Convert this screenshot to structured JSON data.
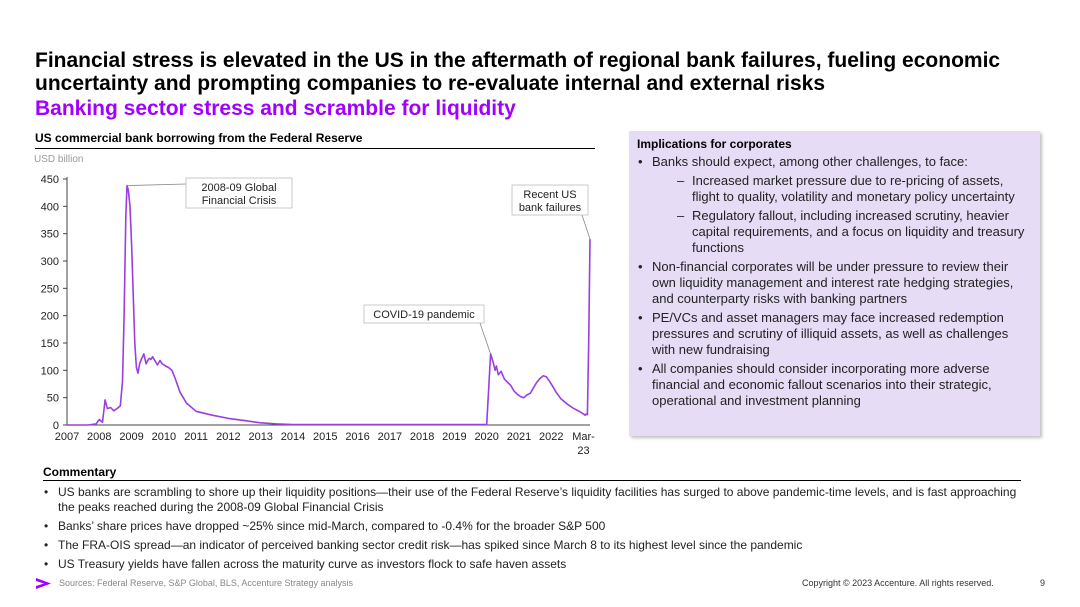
{
  "slide": {
    "title": "Financial stress is elevated in the US in the aftermath of regional bank failures, fueling economic uncertainty and prompting companies to re-evaluate internal and external risks",
    "subtitle": "Banking sector stress and scramble for liquidity",
    "accent_color": "#a100ff"
  },
  "chart_data": {
    "type": "line",
    "title": "US commercial bank borrowing from the Federal Reserve",
    "ylabel": "USD billion",
    "ylim": [
      0,
      450
    ],
    "yticks": [
      0,
      50,
      100,
      150,
      200,
      250,
      300,
      350,
      400,
      450
    ],
    "xlim": [
      2007.0,
      2023.2
    ],
    "xtick_labels": [
      "2007",
      "2008",
      "2009",
      "2010",
      "2011",
      "2012",
      "2013",
      "2014",
      "2015",
      "2016",
      "2017",
      "2018",
      "2019",
      "2020",
      "2021",
      "2022",
      "Mar-23"
    ],
    "line_color": "#9a3ee0",
    "series": [
      {
        "x": [
          2007.0,
          2007.65,
          2007.9,
          2008.0,
          2008.1,
          2008.18,
          2008.25,
          2008.35,
          2008.45,
          2008.55,
          2008.65,
          2008.72,
          2008.77,
          2008.82,
          2008.86,
          2008.9,
          2008.95,
          2009.0,
          2009.05,
          2009.1,
          2009.15,
          2009.2,
          2009.25,
          2009.3,
          2009.38,
          2009.45,
          2009.5,
          2009.55,
          2009.6,
          2009.65,
          2009.72,
          2009.8,
          2009.88,
          2009.95,
          2010.05,
          2010.15,
          2010.25,
          2010.35,
          2010.5,
          2010.7,
          2011.0,
          2011.5,
          2012.0,
          2012.5,
          2013.0,
          2013.5,
          2014.0,
          2016.0,
          2018.0,
          2019.0,
          2020.0,
          2020.12,
          2020.2,
          2020.26,
          2020.3,
          2020.36,
          2020.45,
          2020.55,
          2020.65,
          2020.75,
          2020.85,
          2020.95,
          2021.05,
          2021.15,
          2021.25,
          2021.35,
          2021.45,
          2021.55,
          2021.65,
          2021.75,
          2021.85,
          2021.95,
          2022.05,
          2022.15,
          2022.3,
          2022.5,
          2022.7,
          2022.9,
          2023.0,
          2023.05,
          2023.08,
          2023.12,
          2023.16,
          2023.2
        ],
        "y": [
          0,
          0,
          2,
          10,
          5,
          46,
          30,
          32,
          26,
          30,
          35,
          80,
          200,
          380,
          438,
          430,
          400,
          330,
          240,
          150,
          105,
          95,
          112,
          120,
          130,
          112,
          118,
          122,
          120,
          125,
          118,
          110,
          118,
          112,
          108,
          105,
          100,
          85,
          60,
          40,
          25,
          18,
          12,
          8,
          4,
          2,
          1,
          1,
          1,
          1,
          1,
          130,
          115,
          100,
          108,
          92,
          98,
          84,
          78,
          72,
          62,
          56,
          52,
          50,
          55,
          58,
          68,
          78,
          85,
          90,
          88,
          80,
          70,
          60,
          48,
          38,
          30,
          24,
          20,
          18,
          20,
          19,
          150,
          340
        ]
      }
    ],
    "annotations": [
      {
        "lines": [
          "2008-09 Global",
          "Financial Crisis"
        ],
        "x": 2008.9,
        "y": 438
      },
      {
        "lines": [
          "COVID-19 pandemic"
        ],
        "x": 2020.12,
        "y": 130
      },
      {
        "lines": [
          "Recent US",
          "bank failures"
        ],
        "x": 2023.2,
        "y": 340
      }
    ]
  },
  "implications": {
    "title": "Implications for corporates",
    "items": [
      {
        "level": 1,
        "text": "Banks should expect, among other challenges, to face:"
      },
      {
        "level": 2,
        "text": "Increased market pressure due to re-pricing of assets, flight to quality, volatility and monetary policy uncertainty"
      },
      {
        "level": 2,
        "text": "Regulatory fallout, including increased scrutiny, heavier capital requirements, and a focus on liquidity and treasury functions"
      },
      {
        "level": 1,
        "text": "Non-financial corporates will be under pressure to review their own liquidity management and interest rate hedging strategies, and counterparty risks with banking partners"
      },
      {
        "level": 1,
        "text": "PE/VCs and asset managers may face increased redemption pressures and scrutiny of illiquid assets, as well as challenges with new fundraising"
      },
      {
        "level": 1,
        "text": "All companies should consider incorporating more adverse financial and economic fallout scenarios into their strategic, operational and investment planning"
      }
    ]
  },
  "commentary": {
    "title": "Commentary",
    "items": [
      "US banks are scrambling to shore up their liquidity positions—their use of the Federal Reserve’s liquidity facilities has surged to above pandemic-time levels, and is fast approaching the peaks reached during the 2008-09 Global Financial Crisis",
      "Banks’ share prices have dropped ~25% since mid-March, compared to -0.4% for the broader S&P 500",
      "The FRA-OIS spread—an indicator of perceived banking sector credit risk—has spiked since March 8 to its highest level since the pandemic",
      "US Treasury yields have fallen across the maturity curve as investors flock to safe haven assets"
    ]
  },
  "footer": {
    "sources": "Sources: Federal Reserve, S&P Global, BLS, Accenture Strategy analysis",
    "copyright": "Copyright © 2023 Accenture. All rights reserved.",
    "page_number": "9",
    "logo_icon": "accenture-chevron-icon"
  }
}
